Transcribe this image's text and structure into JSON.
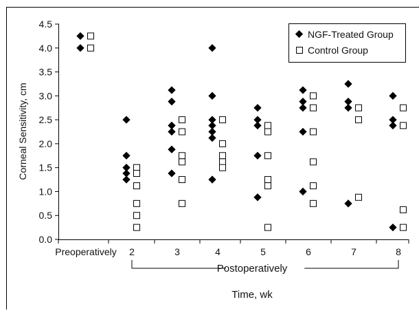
{
  "chart_data": {
    "type": "scatter",
    "title": "",
    "xlabel": "Time, wk",
    "ylabel": "Corneal Sensitivity, cm",
    "group_label": "Postoperatively",
    "categories": [
      "Preoperatively",
      "2",
      "3",
      "4",
      "5",
      "6",
      "7",
      "8"
    ],
    "yticks": [
      "0.0",
      "0.5",
      "1.0",
      "1.5",
      "2.0",
      "2.5",
      "3.0",
      "3.5",
      "4.0",
      "4.5"
    ],
    "ylim": [
      0,
      4.5
    ],
    "legend_position": "top-right",
    "grid": false,
    "series": [
      {
        "name": "NGF-Treated Group",
        "marker": "filled-diamond",
        "color": "#000000",
        "points": [
          [
            "Preoperatively",
            4.25
          ],
          [
            "Preoperatively",
            4.0
          ],
          [
            "2",
            2.5
          ],
          [
            "2",
            1.75
          ],
          [
            "2",
            1.5
          ],
          [
            "2",
            1.38
          ],
          [
            "2",
            1.25
          ],
          [
            "3",
            3.12
          ],
          [
            "3",
            2.88
          ],
          [
            "3",
            2.38
          ],
          [
            "3",
            2.25
          ],
          [
            "3",
            1.88
          ],
          [
            "3",
            1.38
          ],
          [
            "4",
            4.0
          ],
          [
            "4",
            3.0
          ],
          [
            "4",
            2.5
          ],
          [
            "4",
            2.38
          ],
          [
            "4",
            2.25
          ],
          [
            "4",
            2.12
          ],
          [
            "4",
            1.25
          ],
          [
            "5",
            2.75
          ],
          [
            "5",
            2.5
          ],
          [
            "5",
            2.38
          ],
          [
            "5",
            1.75
          ],
          [
            "5",
            0.88
          ],
          [
            "6",
            3.12
          ],
          [
            "6",
            2.88
          ],
          [
            "6",
            2.75
          ],
          [
            "6",
            2.25
          ],
          [
            "6",
            1.0
          ],
          [
            "7",
            3.25
          ],
          [
            "7",
            2.88
          ],
          [
            "7",
            2.75
          ],
          [
            "7",
            0.75
          ],
          [
            "8",
            3.0
          ],
          [
            "8",
            2.5
          ],
          [
            "8",
            2.38
          ],
          [
            "8",
            0.25
          ]
        ]
      },
      {
        "name": "Control Group",
        "marker": "open-square",
        "color": "#000000",
        "points": [
          [
            "Preoperatively",
            4.25
          ],
          [
            "Preoperatively",
            4.0
          ],
          [
            "2",
            1.5
          ],
          [
            "2",
            1.38
          ],
          [
            "2",
            1.12
          ],
          [
            "2",
            0.75
          ],
          [
            "2",
            0.5
          ],
          [
            "2",
            0.25
          ],
          [
            "3",
            2.5
          ],
          [
            "3",
            2.25
          ],
          [
            "3",
            1.75
          ],
          [
            "3",
            1.62
          ],
          [
            "3",
            1.25
          ],
          [
            "3",
            0.75
          ],
          [
            "4",
            2.5
          ],
          [
            "4",
            2.0
          ],
          [
            "4",
            1.75
          ],
          [
            "4",
            1.62
          ],
          [
            "4",
            1.5
          ],
          [
            "5",
            2.38
          ],
          [
            "5",
            2.25
          ],
          [
            "5",
            1.75
          ],
          [
            "5",
            1.25
          ],
          [
            "5",
            1.12
          ],
          [
            "5",
            0.25
          ],
          [
            "6",
            3.0
          ],
          [
            "6",
            2.75
          ],
          [
            "6",
            2.25
          ],
          [
            "6",
            1.62
          ],
          [
            "6",
            1.12
          ],
          [
            "6",
            0.75
          ],
          [
            "7",
            2.75
          ],
          [
            "7",
            2.5
          ],
          [
            "7",
            0.88
          ],
          [
            "8",
            2.75
          ],
          [
            "8",
            2.38
          ],
          [
            "8",
            0.62
          ],
          [
            "8",
            0.25
          ]
        ]
      }
    ]
  }
}
